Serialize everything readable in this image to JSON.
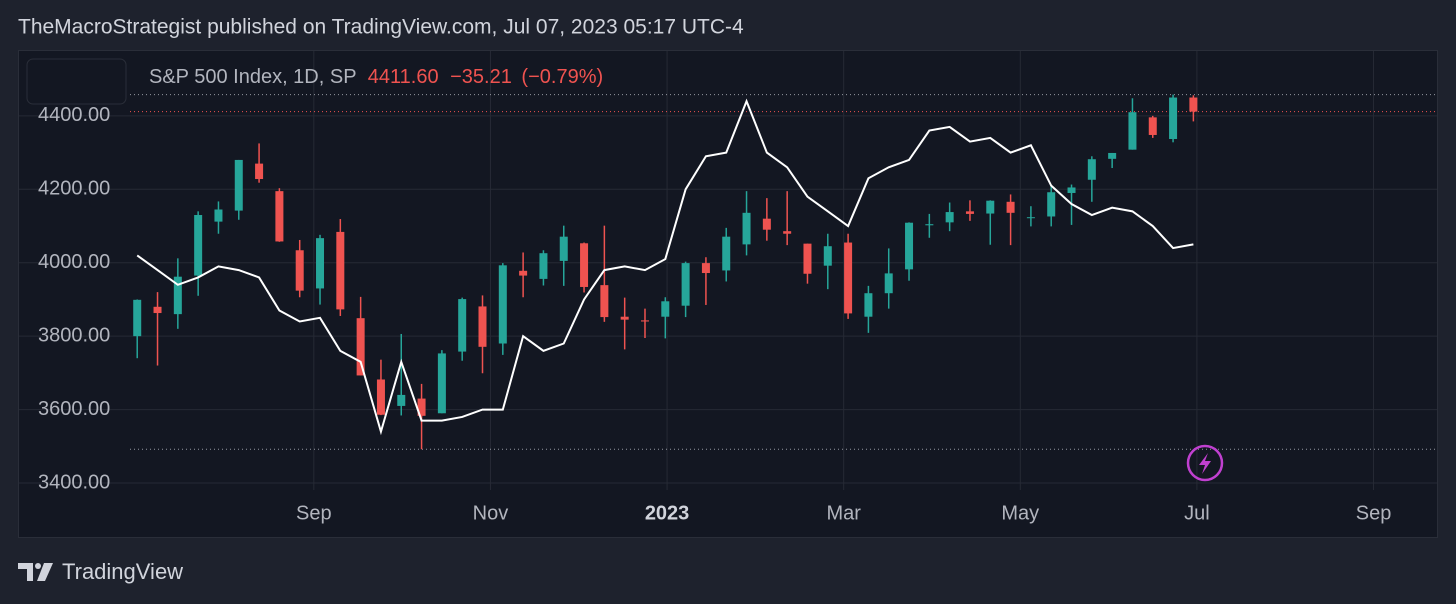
{
  "publisher": "TheMacroStrategist published on TradingView.com, Jul 07, 2023 05:17 UTC-4",
  "brand": "TradingView",
  "chart_data": {
    "type": "candlestick",
    "title": "S&P 500 Index, 1D, SP",
    "last_label": "4411.60",
    "change_label": "−35.21",
    "change_pct_label": "(−0.79%)",
    "up_color": "#26a69a",
    "down_color": "#ef5350",
    "grid": true,
    "xlim": [
      5.65,
      21.73
    ],
    "xticks": [
      {
        "value": 9,
        "label": "Sep"
      },
      {
        "value": 11,
        "label": "Nov"
      },
      {
        "value": 13,
        "label": "2023"
      },
      {
        "value": 15,
        "label": "Mar"
      },
      {
        "value": 17,
        "label": "May"
      },
      {
        "value": 19,
        "label": "Jul"
      },
      {
        "value": 21,
        "label": "Sep"
      }
    ],
    "ylim": [
      3381,
      4574
    ],
    "yticks": [
      {
        "value": 3400,
        "label": "3400.00"
      },
      {
        "value": 3600,
        "label": "3600.00"
      },
      {
        "value": 3800,
        "label": "3800.00"
      },
      {
        "value": 4000,
        "label": "4000.00"
      },
      {
        "value": 4200,
        "label": "4200.00"
      },
      {
        "value": 4400,
        "label": "4400.00"
      }
    ],
    "x": [
      7,
      7.23,
      7.46,
      7.69,
      7.92,
      8.15,
      8.38,
      8.61,
      8.84,
      9.07,
      9.3,
      9.53,
      9.76,
      9.99,
      10.22,
      10.45,
      10.68,
      10.91,
      11.14,
      11.37,
      11.6,
      11.83,
      12.06,
      12.29,
      12.52,
      12.75,
      12.98,
      13.21,
      13.44,
      13.67,
      13.9,
      14.13,
      14.36,
      14.59,
      14.82,
      15.05,
      15.28,
      15.51,
      15.74,
      15.97,
      16.2,
      16.43,
      16.66,
      16.89,
      17.12,
      17.35,
      17.58,
      17.81,
      18.04,
      18.27,
      18.5,
      18.73,
      18.96
    ],
    "open": [
      3800,
      3880,
      3860,
      3965,
      4112,
      4142,
      4270,
      4195,
      4034,
      3930,
      4084,
      3849,
      3682,
      3610,
      3630,
      3590,
      3758,
      3881,
      3780,
      3978,
      3956,
      4005,
      4053,
      3939,
      3853,
      3843,
      3853,
      3883,
      3999,
      3979,
      4050,
      4120,
      4086,
      4052,
      3992,
      4055,
      3853,
      3917,
      3982,
      4102,
      4110,
      4140,
      4134,
      4166,
      4124,
      4126,
      4190,
      4226,
      4283,
      4308,
      4396,
      4337,
      4450
    ],
    "high": [
      3900,
      3920,
      4012,
      4140,
      4167,
      4280,
      4325,
      4203,
      4062,
      4076,
      4119,
      3907,
      3736,
      3806,
      3670,
      3762,
      3905,
      3911,
      3999,
      4028,
      4034,
      4101,
      4055,
      4101,
      3905,
      3875,
      3906,
      4003,
      4015,
      4095,
      4195,
      4176,
      4195,
      4052,
      4079,
      4079,
      3937,
      4039,
      4110,
      4133,
      4164,
      4170,
      4170,
      4186,
      4154,
      4212,
      4213,
      4290,
      4299,
      4448,
      4400,
      4458,
      4456
    ],
    "low": [
      3740,
      3720,
      3820,
      3910,
      4079,
      4117,
      4218,
      4057,
      3906,
      3886,
      3855,
      3693,
      3585,
      3584,
      3492,
      3590,
      3733,
      3699,
      3749,
      3906,
      3938,
      3937,
      3919,
      3839,
      3764,
      3795,
      3794,
      3852,
      3885,
      3949,
      4020,
      4060,
      4048,
      3943,
      3928,
      3847,
      3809,
      3875,
      3951,
      4068,
      4086,
      4114,
      4049,
      4048,
      4099,
      4099,
      4103,
      4166,
      4258,
      4308,
      4340,
      4328,
      4385
    ],
    "close": [
      3899,
      3863,
      3962,
      4130,
      4145,
      4280,
      4228,
      4058,
      3924,
      4067,
      3873,
      3693,
      3586,
      3640,
      3583,
      3753,
      3901,
      3771,
      3993,
      3965,
      4026,
      4071,
      3934,
      3852,
      3845,
      3840,
      3895,
      3999,
      3972,
      4071,
      4136,
      4090,
      4079,
      3970,
      4045,
      3862,
      3917,
      3971,
      4109,
      4105,
      4138,
      4133,
      4169,
      4136,
      4124,
      4192,
      4205,
      4282,
      4299,
      4410,
      4348,
      4450,
      4411.6
    ],
    "series": [
      {
        "color": "#ffffff",
        "values": [
          4020,
          3980,
          3940,
          3960,
          3990,
          3980,
          3960,
          3870,
          3840,
          3850,
          3760,
          3730,
          3540,
          3730,
          3570,
          3570,
          3580,
          3600,
          3600,
          3800,
          3760,
          3780,
          3900,
          3980,
          3990,
          3980,
          4010,
          4200,
          4290,
          4300,
          4440,
          4300,
          4260,
          4180,
          4140,
          4100,
          4230,
          4260,
          4280,
          4360,
          4370,
          4330,
          4340,
          4300,
          4320,
          4210,
          4160,
          4130,
          4150,
          4140,
          4100,
          4040,
          4050
        ]
      }
    ]
  }
}
